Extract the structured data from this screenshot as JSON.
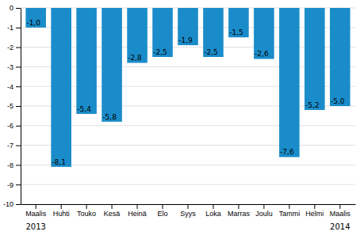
{
  "chart_data": {
    "type": "bar",
    "categories": [
      "Maalis",
      "Huhti",
      "Touko",
      "Kesä",
      "Heinä",
      "Elo",
      "Syys",
      "Loka",
      "Marras",
      "Joulu",
      "Tammi",
      "Helmi",
      "Maalis"
    ],
    "values": [
      -1.0,
      -8.1,
      -5.4,
      -5.8,
      -2.8,
      -2.5,
      -1.9,
      -2.5,
      -1.5,
      -2.6,
      -7.6,
      -5.2,
      -5.0
    ],
    "value_labels": [
      "-1,0",
      "-8,1",
      "-5,4",
      "-5,8",
      "-2,8",
      "-2,5",
      "-1,9",
      "-2,5",
      "-1,5",
      "-2,6",
      "-7,6",
      "-5,2",
      "-5,0"
    ],
    "data_labels": true,
    "color": "#1a8cca",
    "ylim": [
      -10,
      0
    ],
    "yticks": [
      0,
      -1,
      -2,
      -3,
      -4,
      -5,
      -6,
      -7,
      -8,
      -9,
      -10
    ],
    "grid": true,
    "annotations": [
      {
        "text": "2013",
        "x": 0
      },
      {
        "text": "2014",
        "x": 12
      }
    ]
  }
}
